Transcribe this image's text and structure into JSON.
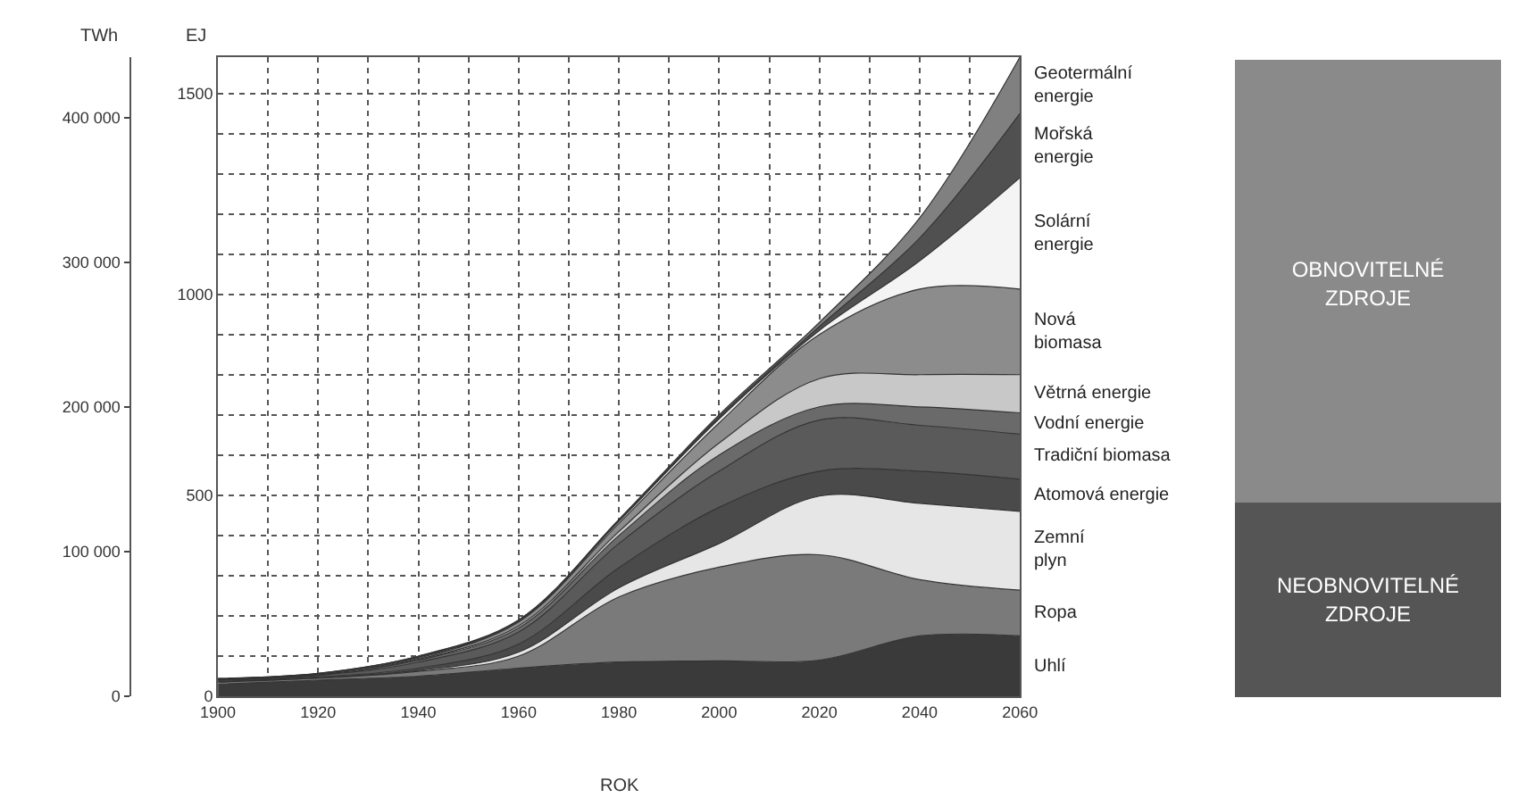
{
  "chart_data": {
    "type": "area",
    "stacked": true,
    "xlabel": "ROK",
    "ylabel": "EJ",
    "y2label": "TWh",
    "x": [
      1900,
      1920,
      1940,
      1960,
      1980,
      2000,
      2020,
      2040,
      2060
    ],
    "series": [
      {
        "name": "Uhlí",
        "color": "#3a3a3a",
        "values": [
          30,
          40,
          50,
          70,
          85,
          88,
          90,
          150,
          150
        ]
      },
      {
        "name": "Ropa",
        "color": "#7a7a7a",
        "values": [
          5,
          5,
          12,
          30,
          162,
          233,
          262,
          140,
          114
        ]
      },
      {
        "name": "Zemní plyn",
        "color": "#e6e6e6",
        "values": [
          1,
          1,
          2,
          10,
          23,
          59,
          146,
          190,
          196
        ]
      },
      {
        "name": "Atomová energie",
        "color": "#4a4a4a",
        "values": [
          1,
          2,
          6,
          20,
          50,
          90,
          62,
          80,
          80
        ]
      },
      {
        "name": "Tradiční biomasa",
        "color": "#5a5a5a",
        "values": [
          3,
          4,
          15,
          30,
          60,
          90,
          127,
          114,
          112
        ]
      },
      {
        "name": "Vodní energie",
        "color": "#6a6a6a",
        "values": [
          1,
          1,
          5,
          10,
          20,
          40,
          33,
          46,
          53
        ]
      },
      {
        "name": "Větrná energie",
        "color": "#c8c8c8",
        "values": [
          1,
          1,
          2,
          5,
          10,
          30,
          70,
          80,
          95
        ]
      },
      {
        "name": "Nová biomasa",
        "color": "#8c8c8c",
        "values": [
          1,
          1,
          3,
          10,
          20,
          50,
          110,
          213,
          213
        ]
      },
      {
        "name": "Solární energie",
        "color": "#f4f4f4",
        "values": [
          0,
          1,
          2,
          2,
          5,
          10,
          10,
          70,
          277
        ]
      },
      {
        "name": "Mořská energie",
        "color": "#505050",
        "values": [
          1,
          1,
          2,
          2,
          3,
          5,
          10,
          57,
          160
        ]
      },
      {
        "name": "Geotermální energie",
        "color": "#808080",
        "values": [
          0,
          0,
          1,
          1,
          2,
          5,
          10,
          50,
          140
        ]
      }
    ],
    "xlim": [
      1900,
      2060
    ],
    "xticks": [
      1900,
      {
        "value": 1910,
        "label": null
      },
      1920,
      {
        "value": 1930,
        "label": null
      },
      1940,
      {
        "value": 1950,
        "label": null
      },
      1960,
      {
        "value": 1970,
        "label": null
      },
      1980,
      {
        "value": 1990,
        "label": null
      },
      2000,
      {
        "value": 2010,
        "label": null
      },
      2020,
      {
        "value": 2030,
        "label": null
      },
      2040,
      {
        "value": 2050,
        "label": null
      },
      2060
    ],
    "ylim": [
      0,
      1590
    ],
    "yticks": [
      0,
      {
        "value": 100,
        "label": null
      },
      {
        "value": 200,
        "label": null
      },
      {
        "value": 300,
        "label": null
      },
      {
        "value": 400,
        "label": null
      },
      500,
      {
        "value": 600,
        "label": null
      },
      {
        "value": 700,
        "label": null
      },
      {
        "value": 800,
        "label": null
      },
      {
        "value": 900,
        "label": null
      },
      1000,
      {
        "value": 1100,
        "label": null
      },
      {
        "value": 1200,
        "label": null
      },
      {
        "value": 1300,
        "label": null
      },
      {
        "value": 1400,
        "label": null
      },
      1500
    ],
    "y2lim": [
      0,
      441700
    ],
    "y2ticks": [
      0,
      {
        "value": 100000,
        "label": "100 000"
      },
      {
        "value": 200000,
        "label": "200 000"
      },
      {
        "value": 300000,
        "label": "300 000"
      },
      {
        "value": 400000,
        "label": "400 000"
      }
    ],
    "grid": true,
    "line_style": "dotted",
    "annotations": [
      "OBNOVITELNÉ ZDROJE",
      "NEOBNOVITELNÉ ZDROJE"
    ]
  }
}
